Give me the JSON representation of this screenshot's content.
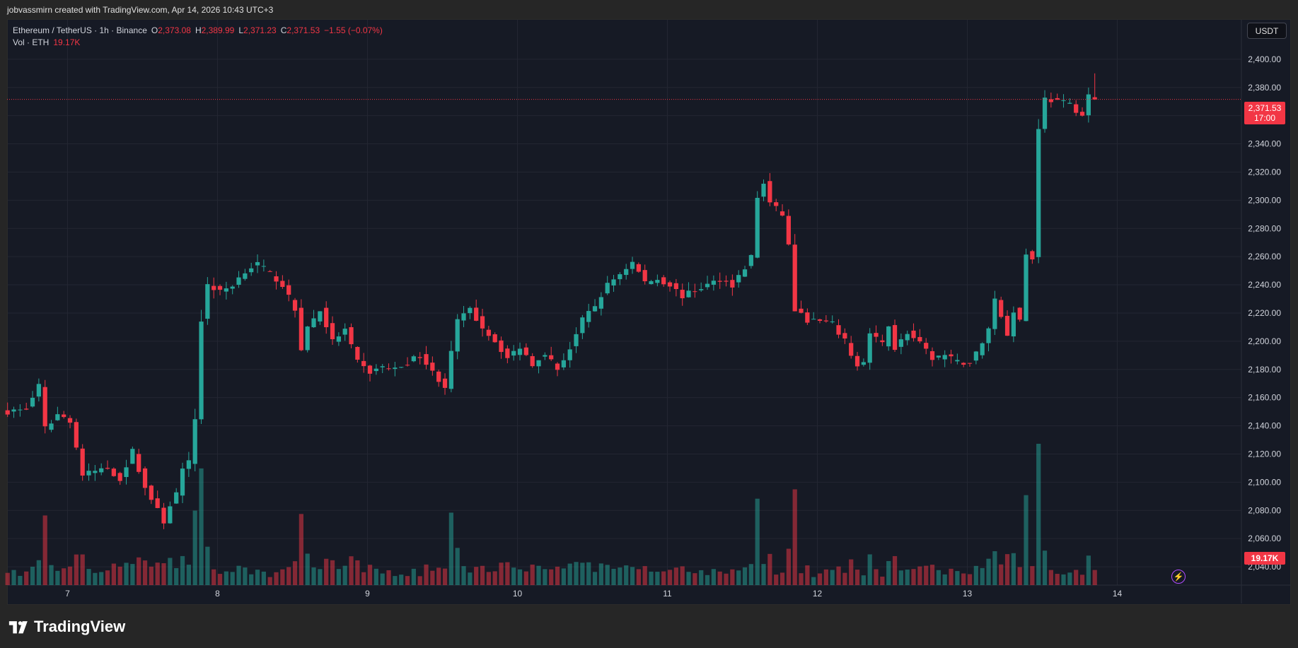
{
  "header": {
    "caption": "jobvassmirn created with TradingView.com, Apr 14, 2026 10:43 UTC+3"
  },
  "legend": {
    "symbol": "Ethereum / TetherUS · 1h · Binance",
    "o_label": "O",
    "o": "2,373.08",
    "h_label": "H",
    "h": "2,389.99",
    "l_label": "L",
    "l": "2,371.23",
    "c_label": "C",
    "c": "2,371.53",
    "change": "−1.55 (−0.07%)",
    "vol_label": "Vol · ETH",
    "vol_value": "19.17K"
  },
  "currency_button": "USDT",
  "last_price": {
    "price": "2,371.53",
    "countdown": "17:00"
  },
  "last_volume": "19.17K",
  "brand": {
    "name": "TradingView",
    "icon": "tradingview-logo-icon"
  },
  "colors": {
    "up": "#26a69a",
    "down": "#f23645",
    "background": "#161a25",
    "grid": "#232632",
    "axis_text": "#d1d4dc",
    "accent": "#b24dff"
  },
  "chart_data": {
    "type": "candlestick",
    "title": "Ethereum / TetherUS · 1h · Binance",
    "y_ticks": [
      "2,040.00",
      "2,060.00",
      "2,080.00",
      "2,100.00",
      "2,120.00",
      "2,140.00",
      "2,160.00",
      "2,180.00",
      "2,200.00",
      "2,220.00",
      "2,240.00",
      "2,260.00",
      "2,280.00",
      "2,300.00",
      "2,320.00",
      "2,340.00",
      "2,360.00",
      "2,380.00",
      "2,400.00"
    ],
    "y_ticks_values": [
      2040,
      2060,
      2080,
      2100,
      2120,
      2140,
      2160,
      2180,
      2200,
      2220,
      2240,
      2260,
      2280,
      2300,
      2320,
      2340,
      2360,
      2380,
      2400
    ],
    "ylim": [
      2027,
      2428
    ],
    "x_ticks": [
      {
        "label": "7",
        "day": 7
      },
      {
        "label": "8",
        "day": 8
      },
      {
        "label": "9",
        "day": 9
      },
      {
        "label": "10",
        "day": 10
      },
      {
        "label": "11",
        "day": 11
      },
      {
        "label": "12",
        "day": 12
      },
      {
        "label": "13",
        "day": 13
      },
      {
        "label": "14",
        "day": 14
      }
    ],
    "first_candle_day": 6.6,
    "candles_per_day": 24,
    "close_path": [
      [
        0,
        2150
      ],
      [
        3,
        2152
      ],
      [
        5,
        2168
      ],
      [
        6,
        2138
      ],
      [
        8,
        2148
      ],
      [
        10,
        2144
      ],
      [
        12,
        2105
      ],
      [
        14,
        2108
      ],
      [
        16,
        2110
      ],
      [
        18,
        2102
      ],
      [
        20,
        2122
      ],
      [
        22,
        2096
      ],
      [
        24,
        2080
      ],
      [
        25,
        2072
      ],
      [
        26,
        2084
      ],
      [
        27,
        2092
      ],
      [
        28,
        2108
      ],
      [
        29,
        2114
      ],
      [
        30,
        2145
      ],
      [
        31,
        2215
      ],
      [
        32,
        2240
      ],
      [
        34,
        2235
      ],
      [
        36,
        2240
      ],
      [
        38,
        2250
      ],
      [
        40,
        2255
      ],
      [
        42,
        2248
      ],
      [
        44,
        2240
      ],
      [
        46,
        2222
      ],
      [
        47,
        2195
      ],
      [
        48,
        2210
      ],
      [
        50,
        2222
      ],
      [
        52,
        2200
      ],
      [
        54,
        2208
      ],
      [
        56,
        2185
      ],
      [
        58,
        2178
      ],
      [
        60,
        2182
      ],
      [
        62,
        2180
      ],
      [
        64,
        2185
      ],
      [
        66,
        2190
      ],
      [
        68,
        2178
      ],
      [
        70,
        2168
      ],
      [
        72,
        2215
      ],
      [
        74,
        2222
      ],
      [
        76,
        2210
      ],
      [
        78,
        2200
      ],
      [
        80,
        2188
      ],
      [
        82,
        2196
      ],
      [
        84,
        2184
      ],
      [
        86,
        2192
      ],
      [
        88,
        2180
      ],
      [
        90,
        2195
      ],
      [
        92,
        2215
      ],
      [
        94,
        2225
      ],
      [
        96,
        2240
      ],
      [
        98,
        2248
      ],
      [
        100,
        2256
      ],
      [
        102,
        2242
      ],
      [
        104,
        2244
      ],
      [
        106,
        2240
      ],
      [
        108,
        2232
      ],
      [
        110,
        2236
      ],
      [
        112,
        2240
      ],
      [
        114,
        2244
      ],
      [
        116,
        2240
      ],
      [
        118,
        2252
      ],
      [
        119,
        2260
      ],
      [
        120,
        2302
      ],
      [
        121,
        2312
      ],
      [
        122,
        2298
      ],
      [
        124,
        2290
      ],
      [
        125,
        2268
      ],
      [
        126,
        2222
      ],
      [
        128,
        2215
      ],
      [
        130,
        2214
      ],
      [
        132,
        2212
      ],
      [
        134,
        2200
      ],
      [
        136,
        2182
      ],
      [
        137,
        2185
      ],
      [
        138,
        2205
      ],
      [
        140,
        2198
      ],
      [
        141,
        2212
      ],
      [
        142,
        2195
      ],
      [
        144,
        2206
      ],
      [
        146,
        2198
      ],
      [
        148,
        2188
      ],
      [
        150,
        2190
      ],
      [
        152,
        2185
      ],
      [
        154,
        2185
      ],
      [
        156,
        2198
      ],
      [
        157,
        2210
      ],
      [
        158,
        2230
      ],
      [
        160,
        2205
      ],
      [
        161,
        2222
      ],
      [
        162,
        2215
      ],
      [
        163,
        2262
      ],
      [
        164,
        2258
      ],
      [
        165,
        2352
      ],
      [
        166,
        2372
      ],
      [
        168,
        2370
      ],
      [
        170,
        2368
      ],
      [
        172,
        2360
      ],
      [
        173,
        2374
      ],
      [
        174,
        2371.5
      ]
    ],
    "last": {
      "open": 2373.08,
      "high": 2389.99,
      "low": 2371.23,
      "close": 2371.53
    }
  }
}
